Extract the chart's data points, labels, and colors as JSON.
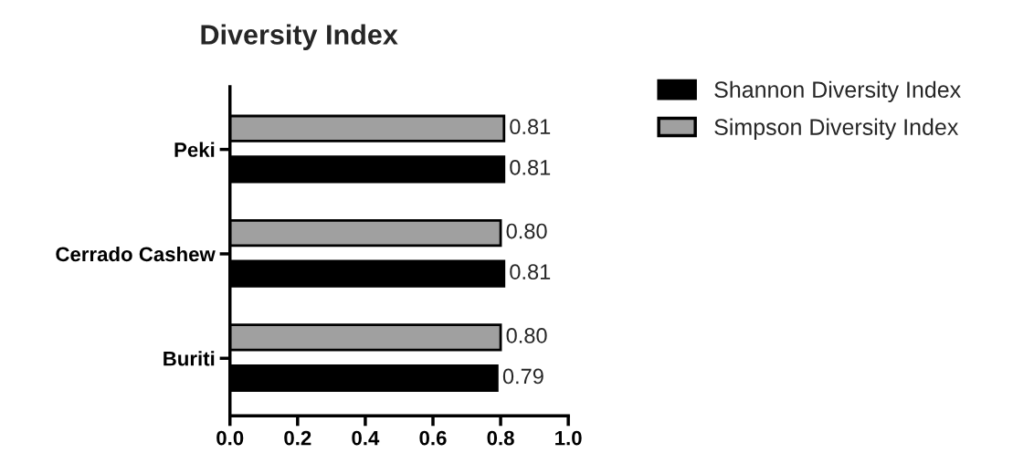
{
  "chart_data": {
    "type": "bar",
    "orientation": "horizontal",
    "title": "Diversity Index",
    "categories": [
      "Peki",
      "Cerrado Cashew",
      "Buriti"
    ],
    "series": [
      {
        "name": "Simpson Diversity Index",
        "color": "#a0a0a0",
        "values": [
          0.81,
          0.8,
          0.8
        ],
        "value_labels": [
          "0.81",
          "0.80",
          "0.80"
        ]
      },
      {
        "name": "Shannon Diversity Index",
        "color": "#000000",
        "values": [
          0.81,
          0.81,
          0.79
        ],
        "value_labels": [
          "0.81",
          "0.81",
          "0.79"
        ]
      }
    ],
    "xlim": [
      0,
      1.0
    ],
    "xticks": [
      {
        "value": 0,
        "label": "0.0"
      },
      {
        "value": 0.2,
        "label": "0.2"
      },
      {
        "value": 0.4,
        "label": "0.4"
      },
      {
        "value": 0.6,
        "label": "0.6"
      },
      {
        "value": 0.8,
        "label": "0.8"
      },
      {
        "value": 1.0,
        "label": "1.0"
      }
    ],
    "grid": false,
    "legend": "right"
  }
}
